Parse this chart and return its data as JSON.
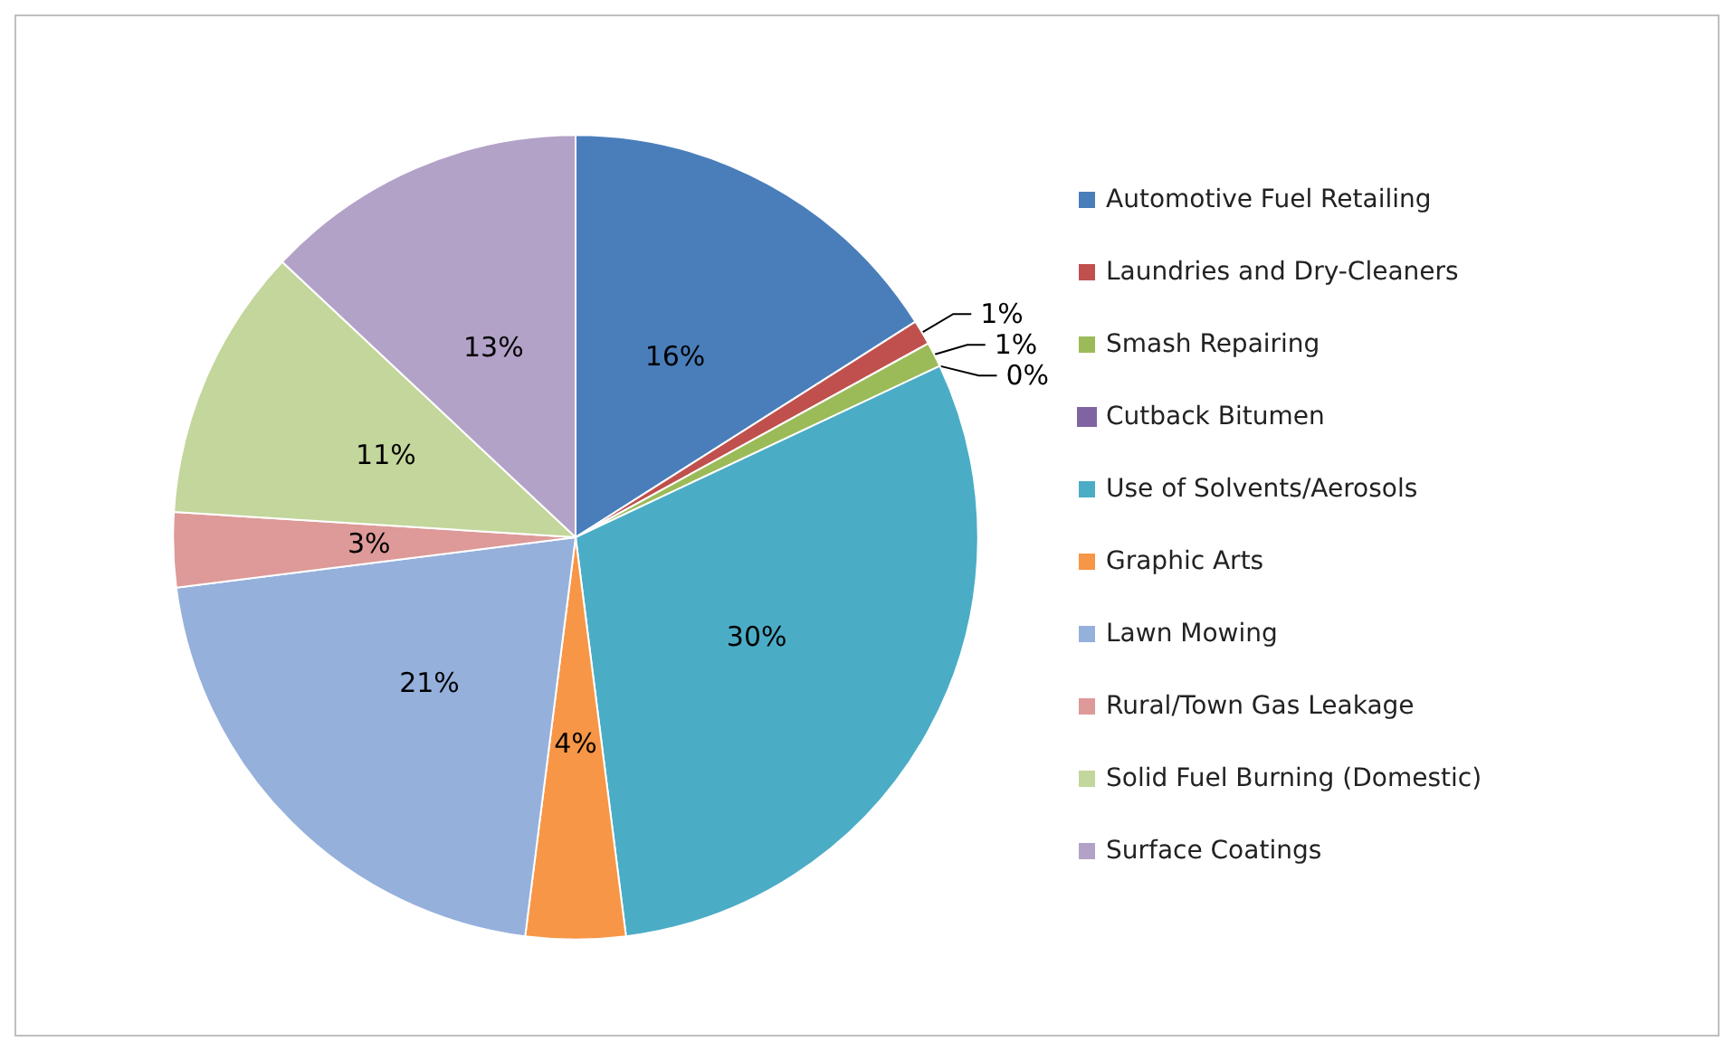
{
  "chart_data": {
    "type": "pie",
    "categories": [
      "Automotive Fuel Retailing",
      "Laundries and Dry-Cleaners",
      "Smash Repairing",
      "Cutback Bitumen",
      "Use of Solvents/Aerosols",
      "Graphic Arts",
      "Lawn Mowing",
      "Rural/Town Gas Leakage",
      "Solid Fuel Burning (Domestic)",
      "Surface Coatings"
    ],
    "values": [
      16,
      1,
      1,
      0,
      30,
      4,
      21,
      3,
      11,
      13
    ],
    "colors": [
      "#4a7ebb",
      "#c0504d",
      "#9bbb59",
      "#8064a2",
      "#4bacc6",
      "#f79646",
      "#95b0db",
      "#dd9a98",
      "#c3d69b",
      "#b3a2c7"
    ],
    "value_labels": [
      "16%",
      "1%",
      "1%",
      "0%",
      "30%",
      "4%",
      "21%",
      "3%",
      "11%",
      "13%"
    ],
    "legend": "right"
  }
}
